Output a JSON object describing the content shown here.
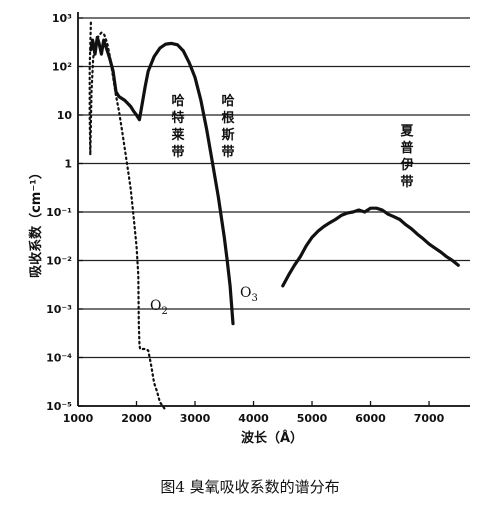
{
  "chart_data": {
    "type": "line",
    "title": "",
    "caption": "图4   臭氧吸收系数的谱分布",
    "xlabel": "波长（Å）",
    "ylabel": "吸收系数（cm⁻¹）",
    "yscale": "log",
    "xlim": [
      1000,
      7700
    ],
    "ylim": [
      1e-05,
      1000
    ],
    "x_ticks": [
      "1000",
      "2000",
      "3000",
      "4000",
      "5000",
      "6000",
      "7000"
    ],
    "y_ticks": [
      "10³",
      "10²",
      "10",
      "1",
      "10⁻¹",
      "10⁻²",
      "10⁻³",
      "10⁻⁴",
      "10⁻⁵"
    ],
    "grid": "horizontal",
    "bands": [
      {
        "label": "哈特莱带",
        "chars": [
          "哈",
          "特",
          "莱",
          "带"
        ]
      },
      {
        "label": "哈根斯带",
        "chars": [
          "哈",
          "根",
          "斯",
          "带"
        ]
      },
      {
        "label": "夏普伊带",
        "chars": [
          "夏",
          "普",
          "伊",
          "带"
        ]
      }
    ],
    "series": [
      {
        "name": "O₃",
        "label_main": "O",
        "label_sub": "3",
        "style": "solid",
        "points": [
          [
            1220,
            220
          ],
          [
            1250,
            350
          ],
          [
            1290,
            180
          ],
          [
            1330,
            400
          ],
          [
            1360,
            300
          ],
          [
            1400,
            180
          ],
          [
            1440,
            350
          ],
          [
            1480,
            250
          ],
          [
            1540,
            150
          ],
          [
            1600,
            80
          ],
          [
            1650,
            30
          ],
          [
            1700,
            24
          ],
          [
            1800,
            20
          ],
          [
            1900,
            15
          ],
          [
            1950,
            12
          ],
          [
            2000,
            10
          ],
          [
            2050,
            8
          ],
          [
            2100,
            18
          ],
          [
            2150,
            40
          ],
          [
            2200,
            80
          ],
          [
            2300,
            160
          ],
          [
            2400,
            240
          ],
          [
            2500,
            290
          ],
          [
            2600,
            300
          ],
          [
            2700,
            280
          ],
          [
            2800,
            210
          ],
          [
            2900,
            120
          ],
          [
            3000,
            60
          ],
          [
            3100,
            20
          ],
          [
            3200,
            5
          ],
          [
            3300,
            1
          ],
          [
            3400,
            0.2
          ],
          [
            3500,
            0.03
          ],
          [
            3550,
            0.01
          ],
          [
            3600,
            0.003
          ],
          [
            3650,
            0.0005
          ]
        ]
      },
      {
        "name": "O₃ (Chappuis)",
        "style": "solid",
        "points": [
          [
            4500,
            0.003
          ],
          [
            4600,
            0.005
          ],
          [
            4700,
            0.008
          ],
          [
            4800,
            0.012
          ],
          [
            4900,
            0.02
          ],
          [
            5000,
            0.03
          ],
          [
            5100,
            0.04
          ],
          [
            5200,
            0.05
          ],
          [
            5300,
            0.06
          ],
          [
            5400,
            0.07
          ],
          [
            5500,
            0.085
          ],
          [
            5600,
            0.095
          ],
          [
            5700,
            0.1
          ],
          [
            5800,
            0.11
          ],
          [
            5900,
            0.1
          ],
          [
            6000,
            0.12
          ],
          [
            6100,
            0.12
          ],
          [
            6200,
            0.11
          ],
          [
            6300,
            0.09
          ],
          [
            6400,
            0.08
          ],
          [
            6500,
            0.07
          ],
          [
            6600,
            0.055
          ],
          [
            6700,
            0.045
          ],
          [
            6800,
            0.035
          ],
          [
            6900,
            0.028
          ],
          [
            7000,
            0.022
          ],
          [
            7100,
            0.018
          ],
          [
            7200,
            0.015
          ],
          [
            7300,
            0.012
          ],
          [
            7400,
            0.01
          ],
          [
            7500,
            0.008
          ]
        ]
      },
      {
        "name": "O₂",
        "label_main": "O",
        "label_sub": "2",
        "style": "dotted",
        "points": [
          [
            1220,
            800
          ],
          [
            1200,
            100
          ],
          [
            1200,
            10
          ],
          [
            1210,
            1.5
          ],
          [
            1230,
            30
          ],
          [
            1260,
            150
          ],
          [
            1300,
            300
          ],
          [
            1350,
            420
          ],
          [
            1400,
            500
          ],
          [
            1450,
            450
          ],
          [
            1500,
            300
          ],
          [
            1550,
            150
          ],
          [
            1600,
            60
          ],
          [
            1650,
            25
          ],
          [
            1700,
            12
          ],
          [
            1750,
            5
          ],
          [
            1800,
            2
          ],
          [
            1850,
            0.8
          ],
          [
            1900,
            0.3
          ],
          [
            1950,
            0.08
          ],
          [
            2000,
            0.02
          ],
          [
            2030,
            0.005
          ],
          [
            2040,
            0.0005
          ],
          [
            2050,
            0.0002
          ],
          [
            2060,
            0.00015
          ],
          [
            2150,
            0.00015
          ],
          [
            2200,
            0.00014
          ],
          [
            2250,
            7e-05
          ],
          [
            2300,
            3e-05
          ],
          [
            2350,
            2e-05
          ],
          [
            2400,
            1.2e-05
          ],
          [
            2450,
            1e-05
          ],
          [
            2500,
            8e-06
          ]
        ]
      }
    ]
  }
}
